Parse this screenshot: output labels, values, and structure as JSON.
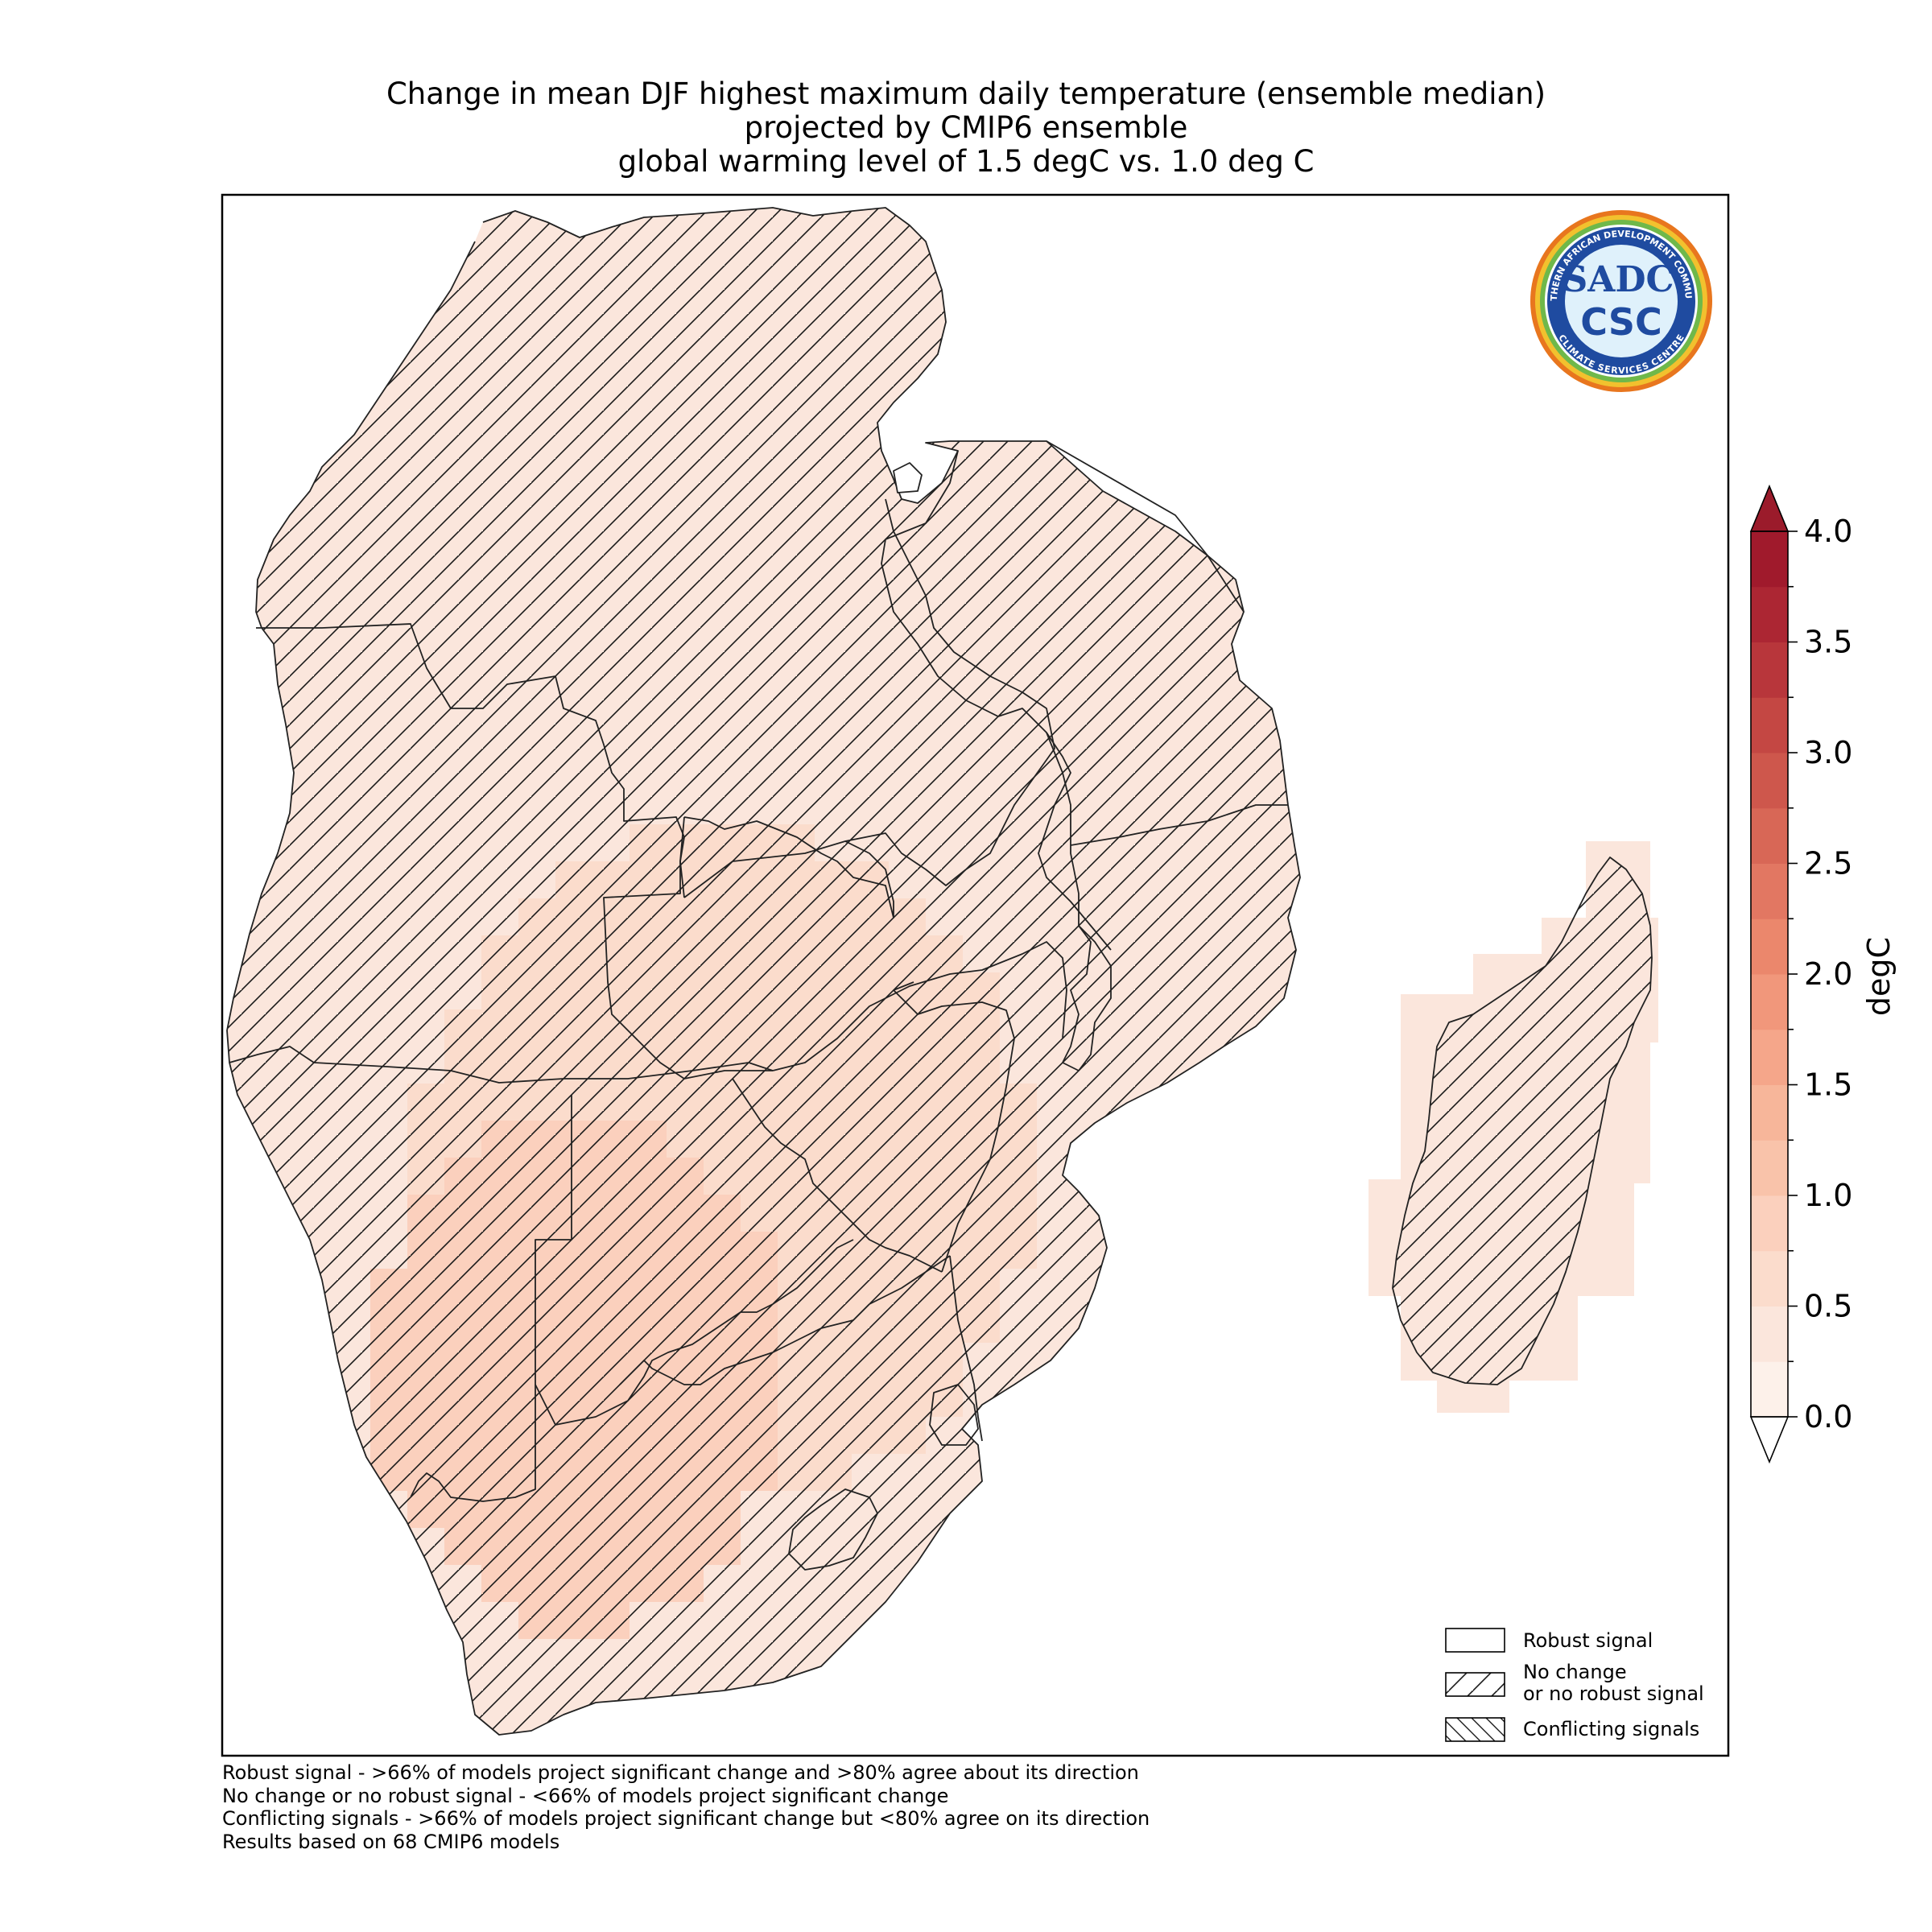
{
  "title": {
    "line1": "Change in mean DJF highest maximum daily temperature (ensemble median)",
    "line2": "projected by CMIP6 ensemble",
    "line3": "global warming level of 1.5 degC vs. 1.0 deg C"
  },
  "logo": {
    "top_text": "SOUTHERN AFRICAN DEVELOPMENT COMMUNITY",
    "bottom_text": "CLIMATE SERVICES CENTRE",
    "mark_top": "SADC",
    "mark_bottom": "CSC"
  },
  "colorbar": {
    "unit": "degC",
    "ticks": [
      "0.0",
      "0.5",
      "1.0",
      "1.5",
      "2.0",
      "2.5",
      "3.0",
      "3.5",
      "4.0"
    ],
    "min": 0.0,
    "max": 4.0,
    "step": 0.25,
    "colors": [
      "#fdf1ea",
      "#fbe6dc",
      "#fbdccc",
      "#fbd0bd",
      "#f9c3aa",
      "#f7b69a",
      "#f5a68a",
      "#f1977b",
      "#eb876c",
      "#e27762",
      "#d86756",
      "#ce574c",
      "#c44743",
      "#b8363b",
      "#ac2633",
      "#a01a2c"
    ],
    "over_color": "#9b1b2b",
    "under_color": "#ffffff"
  },
  "legend": {
    "robust": "Robust signal",
    "no_change_line1": "No change",
    "no_change_line2": "or no robust signal",
    "conflicting": "Conflicting signals"
  },
  "notes": [
    "Robust signal - >66% of models project significant change and >80% agree about its direction",
    "No change or no robust signal - <66% of models project significant change",
    "Conflicting signals - >66% of models project significant change but <80% agree on its direction",
    "Results based on 68 CMIP6 models"
  ],
  "colors": {
    "frame": "#000000",
    "border_lines": "#222222",
    "hatch": "#1a1a1a"
  }
}
